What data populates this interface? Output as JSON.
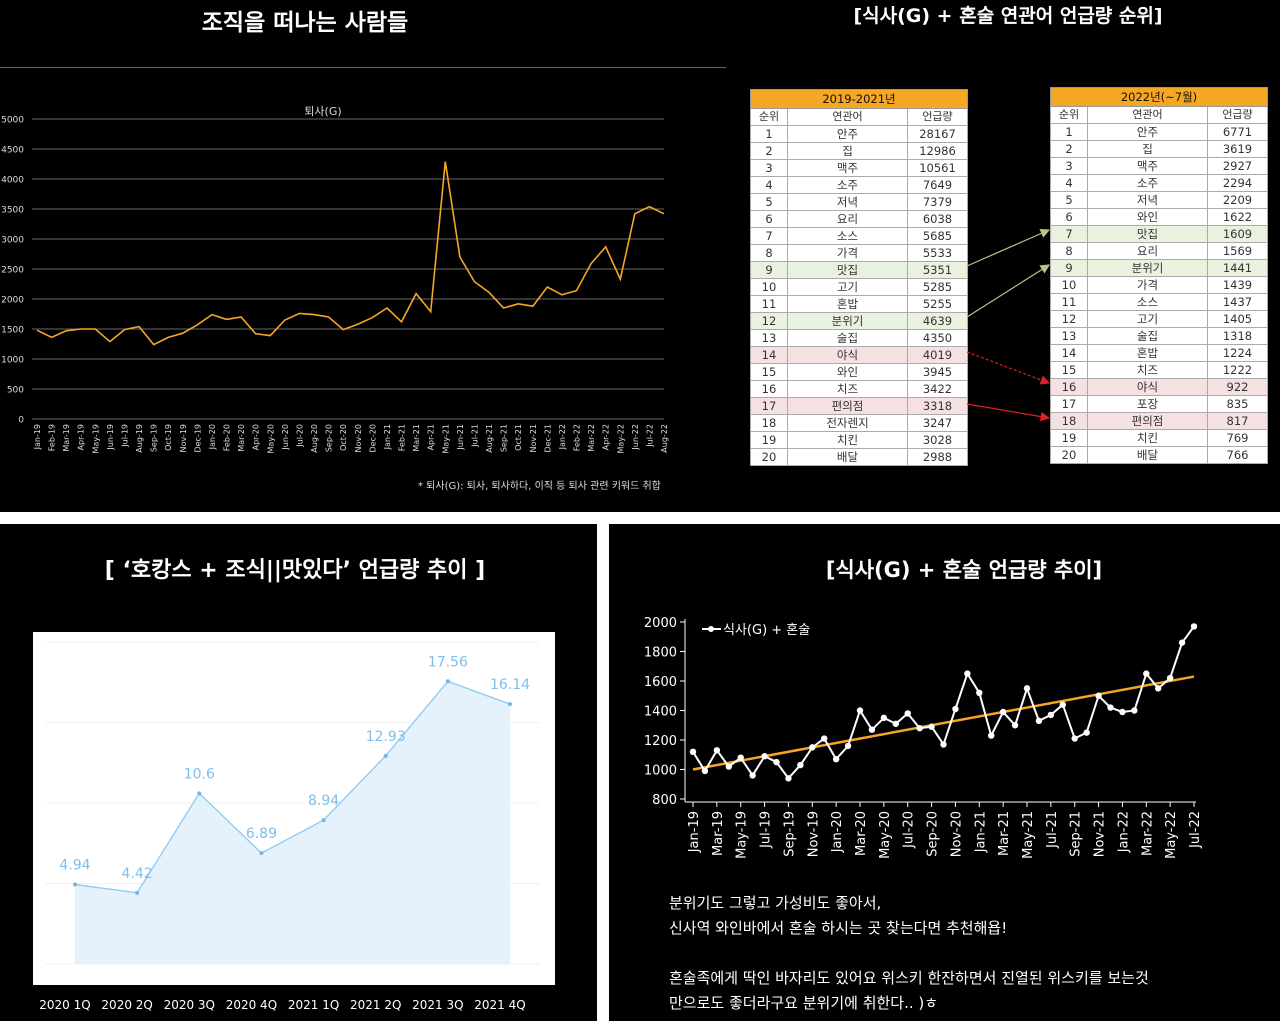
{
  "panels": {
    "top_left": {
      "title": "조직을 떠나는 사람들",
      "chart_title": "퇴사(G)",
      "footnote": "* 퇴사(G): 퇴사, 퇴사하다, 이직 등 퇴사 관련 키워드 취합"
    },
    "top_right": {
      "title": "[식사(G) + 혼술 연관어 언급량 순위]",
      "columns": [
        "순위",
        "연관어",
        "언급량"
      ],
      "left_table": {
        "header": "2019-2021년",
        "rows": [
          [
            "1",
            "안주",
            "28167"
          ],
          [
            "2",
            "집",
            "12986"
          ],
          [
            "3",
            "맥주",
            "10561"
          ],
          [
            "4",
            "소주",
            "7649"
          ],
          [
            "5",
            "저녁",
            "7379"
          ],
          [
            "6",
            "요리",
            "6038"
          ],
          [
            "7",
            "소스",
            "5685"
          ],
          [
            "8",
            "가격",
            "5533"
          ],
          [
            "9",
            "맛집",
            "5351"
          ],
          [
            "10",
            "고기",
            "5285"
          ],
          [
            "11",
            "혼밥",
            "5255"
          ],
          [
            "12",
            "분위기",
            "4639"
          ],
          [
            "13",
            "술집",
            "4350"
          ],
          [
            "14",
            "야식",
            "4019"
          ],
          [
            "15",
            "와인",
            "3945"
          ],
          [
            "16",
            "치즈",
            "3422"
          ],
          [
            "17",
            "편의점",
            "3318"
          ],
          [
            "18",
            "전자렌지",
            "3247"
          ],
          [
            "19",
            "치킨",
            "3028"
          ],
          [
            "20",
            "배달",
            "2988"
          ]
        ]
      },
      "right_table": {
        "header": "2022년(~7월)",
        "rows": [
          [
            "1",
            "안주",
            "6771"
          ],
          [
            "2",
            "집",
            "3619"
          ],
          [
            "3",
            "맥주",
            "2927"
          ],
          [
            "4",
            "소주",
            "2294"
          ],
          [
            "5",
            "저녁",
            "2209"
          ],
          [
            "6",
            "와인",
            "1622"
          ],
          [
            "7",
            "맛집",
            "1609"
          ],
          [
            "8",
            "요리",
            "1569"
          ],
          [
            "9",
            "분위기",
            "1441"
          ],
          [
            "10",
            "가격",
            "1439"
          ],
          [
            "11",
            "소스",
            "1437"
          ],
          [
            "12",
            "고기",
            "1405"
          ],
          [
            "13",
            "술집",
            "1318"
          ],
          [
            "14",
            "혼밥",
            "1224"
          ],
          [
            "15",
            "치즈",
            "1222"
          ],
          [
            "16",
            "야식",
            "922"
          ],
          [
            "17",
            "포장",
            "835"
          ],
          [
            "18",
            "편의점",
            "817"
          ],
          [
            "19",
            "치킨",
            "769"
          ],
          [
            "20",
            "배달",
            "766"
          ]
        ]
      },
      "colors": {
        "header": "#f5a623",
        "green_row": "#e9f1df",
        "pink_row": "#f6e1e1"
      }
    },
    "bottom_left": {
      "title": "[ ‘호캉스 + 조식||맛있다’ 언급량 추이 ]"
    },
    "bottom_right": {
      "title": "[식사(G) + 혼술 언급량 추이]",
      "comment_lines": [
        "분위기도 그렇고 가성비도 좋아서,",
        "신사역 와인바에서 혼술 하시는 곳 찾는다면 추천해욥!",
        "",
        "혼술족에게 딱인 바자리도 있어요 위스키 한잔하면서 진열된 위스키를 보는것",
        "만으로도 좋더라구요 분위기에 취한다.. )ㅎ"
      ]
    }
  },
  "chart_data": [
    {
      "type": "line",
      "title": "퇴사(G)",
      "ylim": [
        0,
        5000
      ],
      "yticks": [
        0,
        500,
        1000,
        1500,
        2000,
        2500,
        3000,
        3500,
        4000,
        4500,
        5000
      ],
      "grid": true,
      "color": "#f5a623",
      "x": [
        "Jan-19",
        "Feb-19",
        "Mar-19",
        "Apr-19",
        "May-19",
        "Jun-19",
        "Jul-19",
        "Aug-19",
        "Sep-19",
        "Oct-19",
        "Nov-19",
        "Dec-19",
        "Jan-20",
        "Feb-20",
        "Mar-20",
        "Apr-20",
        "May-20",
        "Jun-20",
        "Jul-20",
        "Aug-20",
        "Sep-20",
        "Oct-20",
        "Nov-20",
        "Dec-20",
        "Jan-21",
        "Feb-21",
        "Mar-21",
        "Apr-21",
        "May-21",
        "Jun-21",
        "Jul-21",
        "Aug-21",
        "Sep-21",
        "Oct-21",
        "Nov-21",
        "Dec-21",
        "Jan-22",
        "Feb-22",
        "Mar-22",
        "Apr-22",
        "May-22",
        "Jun-22",
        "Jul-22",
        "Aug-22"
      ],
      "values": [
        1480,
        1360,
        1470,
        1500,
        1500,
        1290,
        1490,
        1540,
        1240,
        1360,
        1430,
        1570,
        1740,
        1660,
        1700,
        1420,
        1390,
        1650,
        1760,
        1740,
        1700,
        1490,
        1580,
        1690,
        1850,
        1620,
        2090,
        1790,
        4290,
        2700,
        2290,
        2110,
        1850,
        1920,
        1880,
        2200,
        2070,
        2140,
        2590,
        2870,
        2330,
        3420,
        3540,
        3420
      ]
    },
    {
      "type": "area",
      "categories": [
        "2020 1Q",
        "2020 2Q",
        "2020 3Q",
        "2020 4Q",
        "2021 1Q",
        "2021 2Q",
        "2021 3Q",
        "2021 4Q"
      ],
      "values": [
        4.94,
        4.42,
        10.6,
        6.89,
        8.94,
        12.93,
        17.56,
        16.14
      ],
      "labels": [
        "4.94",
        "4.42",
        "10.6",
        "6.89",
        "8.94",
        "12.93",
        "17.56",
        "16.14"
      ],
      "ylim": [
        0,
        20
      ],
      "grid": true,
      "color": "#8ecdf0"
    },
    {
      "type": "line",
      "legend": "식사(G) + 혼술",
      "legend_position": "top-left",
      "ylim": [
        800,
        2000
      ],
      "yticks": [
        800,
        1000,
        1200,
        1400,
        1600,
        1800,
        2000
      ],
      "xticks": [
        "Jan-19",
        "Mar-19",
        "May-19",
        "Jul-19",
        "Sep-19",
        "Nov-19",
        "Jan-20",
        "Mar-20",
        "May-20",
        "Jul-20",
        "Sep-20",
        "Nov-20",
        "Jan-21",
        "Mar-21",
        "May-21",
        "Jul-21",
        "Sep-21",
        "Nov-21",
        "Jan-22",
        "Mar-22",
        "May-22",
        "Jul-22"
      ],
      "values": [
        1120,
        990,
        1130,
        1020,
        1080,
        960,
        1090,
        1050,
        940,
        1030,
        1150,
        1210,
        1070,
        1160,
        1400,
        1270,
        1350,
        1310,
        1380,
        1280,
        1290,
        1170,
        1410,
        1650,
        1520,
        1230,
        1390,
        1300,
        1550,
        1330,
        1370,
        1440,
        1210,
        1250,
        1500,
        1420,
        1390,
        1400,
        1650,
        1550,
        1620,
        1860,
        1970
      ],
      "trend": [
        1000,
        1630
      ],
      "series_color": "#ffffff",
      "trend_color": "#f5a623"
    }
  ]
}
